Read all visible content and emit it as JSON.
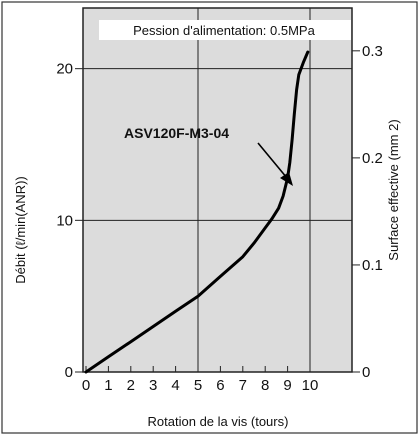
{
  "chart_data": {
    "type": "line",
    "annotation": "Pession d'alimentation: 0.5MPa",
    "series_label": "ASV120F-M3-04",
    "xlabel": "Rotation de la vis (tours)",
    "ylabel": "Débit (ℓ/min(ANR))",
    "y2label": "Surface effective (mm 2)",
    "xlim": [
      0,
      10.5
    ],
    "ylim": [
      0,
      24
    ],
    "y2lim": [
      0,
      0.34
    ],
    "x_ticks": [
      "0",
      "1",
      "2",
      "3",
      "4",
      "5",
      "6",
      "7",
      "8",
      "9",
      "10"
    ],
    "y_ticks": [
      {
        "v": 0,
        "t": "0"
      },
      {
        "v": 10,
        "t": "10"
      },
      {
        "v": 20,
        "t": "20"
      }
    ],
    "y2_ticks": [
      {
        "v": 0,
        "t": "0"
      },
      {
        "v": 0.1,
        "t": "0.1"
      },
      {
        "v": 0.2,
        "t": "0.2"
      },
      {
        "v": 0.3,
        "t": "0.3"
      }
    ],
    "grid_x": [
      5,
      10
    ],
    "grid_y": [
      10,
      20
    ],
    "x": [
      0,
      1,
      2,
      3,
      4,
      5,
      6,
      7,
      7.5,
      8,
      8.3,
      8.6,
      8.8,
      9.0,
      9.1,
      9.2,
      9.3,
      9.4,
      9.5,
      9.7,
      9.9
    ],
    "y": [
      0,
      1.0,
      2.0,
      3.0,
      4.0,
      5.0,
      6.3,
      7.6,
      8.5,
      9.5,
      10.1,
      10.8,
      11.6,
      12.8,
      13.8,
      15.3,
      17.0,
      18.6,
      19.6,
      20.4,
      21.1
    ]
  }
}
